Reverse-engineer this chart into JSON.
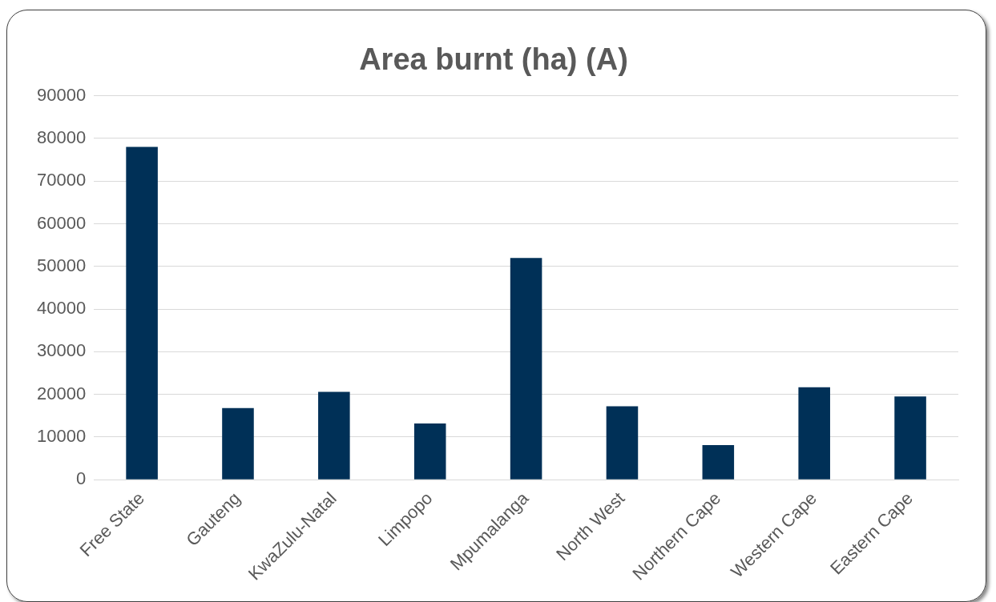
{
  "chart_data": {
    "type": "bar",
    "title": "Area burnt (ha) (A)",
    "categories": [
      "Free State",
      "Gauteng",
      "KwaZulu-Natal",
      "Limpopo",
      "Mpumalanga",
      "North West",
      "Northern Cape",
      "Western Cape",
      "Eastern Cape"
    ],
    "values": [
      78000,
      16800,
      20600,
      13200,
      52000,
      17200,
      8100,
      21700,
      19500
    ],
    "color": "#003057",
    "ylim": [
      0,
      90000
    ],
    "yticks": [
      0,
      10000,
      20000,
      30000,
      40000,
      50000,
      60000,
      70000,
      80000,
      90000
    ],
    "grid": "y",
    "legend": false
  }
}
